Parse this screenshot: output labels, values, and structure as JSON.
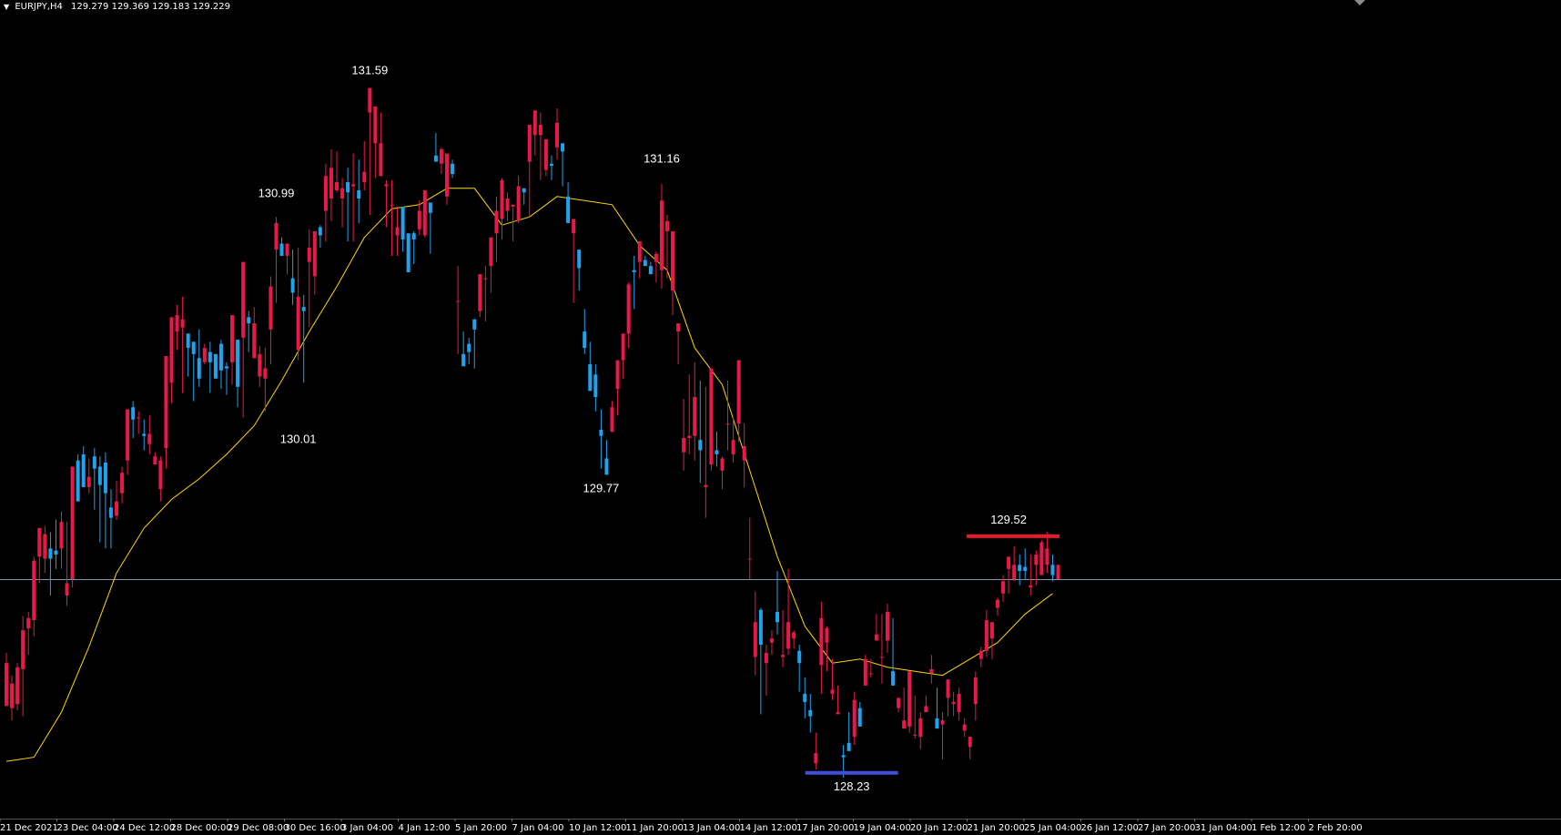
{
  "window": {
    "symbol_timeframe": "EURJPY,H4",
    "ohlc_readout": "129.279 129.369 129.183 129.229"
  },
  "colors": {
    "background": "#000000",
    "bull": "#e8194a",
    "bear": "#1fa3ee",
    "ma": "#ffd700",
    "bid_line": "#7f95b0",
    "resistance": "#e8192b",
    "support": "#3f4fd6",
    "text": "#ffffff"
  },
  "chart_data": {
    "type": "candlestick",
    "symbol": "EURJPY",
    "timeframe": "H4",
    "ylim": [
      128.06,
      132.06
    ],
    "time_labels": [
      "21 Dec 2021",
      "23 Dec 04:00",
      "24 Dec 12:00",
      "28 Dec 00:00",
      "29 Dec 08:00",
      "30 Dec 16:00",
      "3 Jan 04:00",
      "4 Jan 12:00",
      "5 Jan 20:00",
      "7 Jan 04:00",
      "10 Jan 12:00",
      "11 Jan 20:00",
      "13 Jan 04:00",
      "14 Jan 12:00",
      "17 Jan 20:00",
      "19 Jan 04:00",
      "20 Jan 12:00",
      "21 Jan 20:00",
      "25 Jan 04:00",
      "26 Jan 12:00",
      "27 Jan 20:00",
      "31 Jan 04:00",
      "1 Feb 12:00",
      "2 Feb 20:00"
    ],
    "price_labels": [
      {
        "label": "131.59",
        "kind": "swing-high",
        "bar": 66
      },
      {
        "label": "130.99",
        "kind": "swing-high",
        "bar": 49
      },
      {
        "label": "130.01",
        "kind": "swing-low",
        "bar": 53
      },
      {
        "label": "131.16",
        "kind": "swing-high",
        "bar": 119
      },
      {
        "label": "129.77",
        "kind": "swing-low",
        "bar": 108
      },
      {
        "label": "129.52",
        "kind": "resistance",
        "bar": 182
      },
      {
        "label": "128.23",
        "kind": "support",
        "bar": 153
      }
    ],
    "bid_price": 129.229,
    "levels": {
      "resistance": 129.52,
      "support": 128.23
    },
    "ma_series": [
      [
        0,
        128.34
      ],
      [
        5,
        128.36
      ],
      [
        10,
        128.58
      ],
      [
        15,
        128.9
      ],
      [
        20,
        129.26
      ],
      [
        25,
        129.48
      ],
      [
        30,
        129.62
      ],
      [
        35,
        129.72
      ],
      [
        40,
        129.84
      ],
      [
        45,
        129.98
      ],
      [
        50,
        130.2
      ],
      [
        55,
        130.44
      ],
      [
        60,
        130.66
      ],
      [
        65,
        130.9
      ],
      [
        70,
        131.04
      ],
      [
        75,
        131.06
      ],
      [
        80,
        131.14
      ],
      [
        85,
        131.14
      ],
      [
        90,
        130.96
      ],
      [
        95,
        131.0
      ],
      [
        100,
        131.1
      ],
      [
        105,
        131.08
      ],
      [
        110,
        131.06
      ],
      [
        115,
        130.86
      ],
      [
        120,
        130.74
      ],
      [
        125,
        130.36
      ],
      [
        130,
        130.18
      ],
      [
        135,
        129.76
      ],
      [
        140,
        129.34
      ],
      [
        145,
        129.0
      ],
      [
        150,
        128.82
      ],
      [
        155,
        128.84
      ],
      [
        160,
        128.8
      ],
      [
        165,
        128.78
      ],
      [
        170,
        128.76
      ],
      [
        175,
        128.84
      ],
      [
        180,
        128.92
      ],
      [
        185,
        129.06
      ],
      [
        190,
        129.16
      ]
    ],
    "candles": [
      [
        128.87,
        128.61,
        128.61,
        128.82
      ],
      [
        128.76,
        128.6,
        128.54,
        128.72
      ],
      [
        128.82,
        128.62,
        128.59,
        128.8
      ],
      [
        129.05,
        128.79,
        128.56,
        128.98
      ],
      [
        129.07,
        128.99,
        128.86,
        129.04
      ],
      [
        129.34,
        129.03,
        128.95,
        129.32
      ],
      [
        129.47,
        129.34,
        129.21,
        129.48
      ],
      [
        129.49,
        129.33,
        129.26,
        129.45
      ],
      [
        129.46,
        129.38,
        129.15,
        129.33
      ],
      [
        129.52,
        129.37,
        129.28,
        129.35
      ],
      [
        129.56,
        129.38,
        129.28,
        129.51
      ],
      [
        129.51,
        129.15,
        129.1,
        129.21
      ],
      [
        129.74,
        129.23,
        129.19,
        129.78
      ],
      [
        129.84,
        129.81,
        129.62,
        129.61
      ],
      [
        129.88,
        129.84,
        129.71,
        129.68
      ],
      [
        129.82,
        129.68,
        129.65,
        129.73
      ],
      [
        129.87,
        129.83,
        129.57,
        129.77
      ],
      [
        129.83,
        129.78,
        129.41,
        129.69
      ],
      [
        129.85,
        129.8,
        129.38,
        129.65
      ],
      [
        129.67,
        129.58,
        129.38,
        129.53
      ],
      [
        129.71,
        129.54,
        129.52,
        129.61
      ],
      [
        129.78,
        129.65,
        129.6,
        129.75
      ],
      [
        129.99,
        129.81,
        129.74,
        130.06
      ],
      [
        130.1,
        130.07,
        129.92,
        130.01
      ],
      [
        130.05,
        130.02,
        129.94,
        130.02
      ],
      [
        130.01,
        129.94,
        129.86,
        129.93
      ],
      [
        130.03,
        129.89,
        129.84,
        129.94
      ],
      [
        129.85,
        129.79,
        129.79,
        129.83
      ],
      [
        129.83,
        129.67,
        129.61,
        129.81
      ],
      [
        130.18,
        129.87,
        129.77,
        130.32
      ],
      [
        130.49,
        130.19,
        130.09,
        130.51
      ],
      [
        130.57,
        130.44,
        130.35,
        130.52
      ],
      [
        130.61,
        130.46,
        130.14,
        130.5
      ],
      [
        130.43,
        130.43,
        130.22,
        130.36
      ],
      [
        130.17,
        130.39,
        130.1,
        130.33
      ],
      [
        130.45,
        130.31,
        130.17,
        130.21
      ],
      [
        130.38,
        130.29,
        130.28,
        130.36
      ],
      [
        130.39,
        130.34,
        130.14,
        130.29
      ],
      [
        130.33,
        130.33,
        130.22,
        130.21
      ],
      [
        130.4,
        130.38,
        130.16,
        130.25
      ],
      [
        130.29,
        130.27,
        130.13,
        130.26
      ],
      [
        130.52,
        130.29,
        130.18,
        130.52
      ],
      [
        130.39,
        130.4,
        130.07,
        130.17
      ],
      [
        130.73,
        130.41,
        130.02,
        130.78
      ],
      [
        130.54,
        130.51,
        130.34,
        130.48
      ],
      [
        130.56,
        130.31,
        130.32,
        130.48
      ],
      [
        130.37,
        130.22,
        130.17,
        130.33
      ],
      [
        130.36,
        130.21,
        130.05,
        130.26
      ],
      [
        130.71,
        130.45,
        130.28,
        130.66
      ],
      [
        131.0,
        130.84,
        130.58,
        130.97
      ],
      [
        130.9,
        130.87,
        130.81,
        130.81
      ],
      [
        130.86,
        130.81,
        130.72,
        130.87
      ],
      [
        130.84,
        130.7,
        130.57,
        130.63
      ],
      [
        130.85,
        130.35,
        130.3,
        130.61
      ],
      [
        130.62,
        130.56,
        130.19,
        130.54
      ],
      [
        130.94,
        130.78,
        130.46,
        130.85
      ],
      [
        130.84,
        130.71,
        130.62,
        130.93
      ],
      [
        130.96,
        130.95,
        130.85,
        130.91
      ],
      [
        131.26,
        131.03,
        130.88,
        131.2
      ],
      [
        131.33,
        131.09,
        130.98,
        131.24
      ],
      [
        131.32,
        131.13,
        131.12,
        131.17
      ],
      [
        131.19,
        131.09,
        130.95,
        131.14
      ],
      [
        131.24,
        131.17,
        130.88,
        131.12
      ],
      [
        131.31,
        131.15,
        130.88,
        131.16
      ],
      [
        131.28,
        131.13,
        130.97,
        131.09
      ],
      [
        131.37,
        131.17,
        131.13,
        131.22
      ],
      [
        131.57,
        131.51,
        131.01,
        131.63
      ],
      [
        131.43,
        131.36,
        131.19,
        131.54
      ],
      [
        131.51,
        131.2,
        131.22,
        131.36
      ],
      [
        131.18,
        131.15,
        130.95,
        131.16
      ],
      [
        131.18,
        131.06,
        130.81,
        131.06
      ],
      [
        131.05,
        130.91,
        130.81,
        130.95
      ],
      [
        130.94,
        131.05,
        130.83,
        130.89
      ],
      [
        130.92,
        130.92,
        130.79,
        130.73
      ],
      [
        130.93,
        130.92,
        130.77,
        130.89
      ],
      [
        131.08,
        130.94,
        130.91,
        131.03
      ],
      [
        131.1,
        130.91,
        130.9,
        131.13
      ],
      [
        131.05,
        131.07,
        130.82,
        131.02
      ],
      [
        131.41,
        131.3,
        131.3,
        131.27
      ],
      [
        131.34,
        131.26,
        131.21,
        131.33
      ],
      [
        131.28,
        131.1,
        131.06,
        131.31
      ],
      [
        131.28,
        131.26,
        131.19,
        131.21
      ],
      [
        130.76,
        130.59,
        130.33,
        130.59
      ],
      [
        130.44,
        130.33,
        130.28,
        130.27
      ],
      [
        130.41,
        130.38,
        130.28,
        130.34
      ],
      [
        130.43,
        130.5,
        130.26,
        130.45
      ],
      [
        130.62,
        130.54,
        130.51,
        130.72
      ],
      [
        130.76,
        130.7,
        130.49,
        130.7
      ],
      [
        130.89,
        130.76,
        130.63,
        130.9
      ],
      [
        131.1,
        130.92,
        130.78,
        131.03
      ],
      [
        131.19,
        130.99,
        130.89,
        131.18
      ],
      [
        131.12,
        131.03,
        130.98,
        131.09
      ],
      [
        131.03,
        131.05,
        130.88,
        131.06
      ],
      [
        131.2,
        130.98,
        130.97,
        131.15
      ],
      [
        131.13,
        131.14,
        131.06,
        131.12
      ],
      [
        131.35,
        131.27,
        131.0,
        131.45
      ],
      [
        131.5,
        131.4,
        131.3,
        131.52
      ],
      [
        131.51,
        131.4,
        131.18,
        131.45
      ],
      [
        131.37,
        131.23,
        131.2,
        131.38
      ],
      [
        131.3,
        131.26,
        131.18,
        131.25
      ],
      [
        131.53,
        131.34,
        131.28,
        131.46
      ],
      [
        131.28,
        131.36,
        131.15,
        131.32
      ],
      [
        131.17,
        131.1,
        131.11,
        130.97
      ],
      [
        130.84,
        130.92,
        130.58,
        130.99
      ],
      [
        130.81,
        130.84,
        130.64,
        130.75
      ],
      [
        130.55,
        130.44,
        130.33,
        130.36
      ],
      [
        130.39,
        130.28,
        130.16,
        130.15
      ],
      [
        130.28,
        130.23,
        130.05,
        130.12
      ],
      [
        130.06,
        129.96,
        129.77,
        129.93
      ],
      [
        129.91,
        129.82,
        129.79,
        129.74
      ],
      [
        130.1,
        129.95,
        129.95,
        130.07
      ],
      [
        130.3,
        130.16,
        130.03,
        130.3
      ],
      [
        130.33,
        130.3,
        130.21,
        130.43
      ],
      [
        130.68,
        130.43,
        130.36,
        130.67
      ],
      [
        130.81,
        130.74,
        130.55,
        130.73
      ],
      [
        130.85,
        130.78,
        130.7,
        130.88
      ],
      [
        130.81,
        130.79,
        130.77,
        130.76
      ],
      [
        130.78,
        130.76,
        130.74,
        130.72
      ],
      [
        130.83,
        130.78,
        130.68,
        130.82
      ],
      [
        131.16,
        130.74,
        130.65,
        131.08
      ],
      [
        131.01,
        130.93,
        130.7,
        130.98
      ],
      [
        130.92,
        130.64,
        130.52,
        130.93
      ],
      [
        130.44,
        130.44,
        130.28,
        130.48
      ],
      [
        130.11,
        129.85,
        129.76,
        129.92
      ],
      [
        130.23,
        129.92,
        129.84,
        129.93
      ],
      [
        130.29,
        129.93,
        129.81,
        130.12
      ],
      [
        130.2,
        129.91,
        129.7,
        129.86
      ],
      [
        130.17,
        129.68,
        129.53,
        129.69
      ],
      [
        130.19,
        129.79,
        129.76,
        130.26
      ],
      [
        129.95,
        129.86,
        129.78,
        129.84
      ],
      [
        129.83,
        129.76,
        129.67,
        129.82
      ],
      [
        130.2,
        129.99,
        129.86,
        129.99
      ],
      [
        130.02,
        129.84,
        129.8,
        129.91
      ],
      [
        130.3,
        129.99,
        129.9,
        130.3
      ],
      [
        129.99,
        129.81,
        129.68,
        129.88
      ],
      [
        129.53,
        129.33,
        129.23,
        129.33
      ],
      [
        129.17,
        128.85,
        128.76,
        129.02
      ],
      [
        129.09,
        129.08,
        128.57,
        128.91
      ],
      [
        128.91,
        128.82,
        128.66,
        128.87
      ],
      [
        128.98,
        128.92,
        128.86,
        128.94
      ],
      [
        129.27,
        129.07,
        128.96,
        129.02
      ],
      [
        129.08,
        128.85,
        128.8,
        128.86
      ],
      [
        129.28,
        128.89,
        128.86,
        129.02
      ],
      [
        128.98,
        128.94,
        128.89,
        128.97
      ],
      [
        128.91,
        128.88,
        128.68,
        128.82
      ],
      [
        128.75,
        128.67,
        128.55,
        128.63
      ],
      [
        128.67,
        128.59,
        128.48,
        128.56
      ],
      [
        128.48,
        128.33,
        128.3,
        128.38
      ],
      [
        129.12,
        128.81,
        128.67,
        129.04
      ],
      [
        129.0,
        128.92,
        128.78,
        128.99
      ],
      [
        128.84,
        128.67,
        128.64,
        128.69
      ],
      [
        128.71,
        128.57,
        128.58,
        128.58
      ],
      [
        128.42,
        128.37,
        128.26,
        128.36
      ],
      [
        128.58,
        128.43,
        128.44,
        128.39
      ],
      [
        128.68,
        128.46,
        128.42,
        128.64
      ],
      [
        128.63,
        128.6,
        128.54,
        128.51
      ],
      [
        128.86,
        128.71,
        128.72,
        128.84
      ],
      [
        128.84,
        128.77,
        128.75,
        128.77
      ],
      [
        129.06,
        128.93,
        128.93,
        128.96
      ],
      [
        129.06,
        128.85,
        128.72,
        128.85
      ],
      [
        129.11,
        128.93,
        128.87,
        129.07
      ],
      [
        129.04,
        128.78,
        128.76,
        128.71
      ],
      [
        128.64,
        128.6,
        128.58,
        128.65
      ],
      [
        128.7,
        128.5,
        128.54,
        128.54
      ],
      [
        128.78,
        128.51,
        128.48,
        128.78
      ],
      [
        128.66,
        128.47,
        128.45,
        128.47
      ],
      [
        128.58,
        128.46,
        128.4,
        128.55
      ],
      [
        128.66,
        128.58,
        128.62,
        128.61
      ],
      [
        128.86,
        128.77,
        128.72,
        128.79
      ],
      [
        128.7,
        128.55,
        128.56,
        128.5
      ],
      [
        128.58,
        128.52,
        128.35,
        128.54
      ],
      [
        128.72,
        128.65,
        128.56,
        128.74
      ],
      [
        128.68,
        128.62,
        128.56,
        128.63
      ],
      [
        128.7,
        128.58,
        128.54,
        128.67
      ],
      [
        128.55,
        128.49,
        128.46,
        128.52
      ],
      [
        128.46,
        128.41,
        128.35,
        128.46
      ],
      [
        128.78,
        128.62,
        128.54,
        128.75
      ],
      [
        128.9,
        128.84,
        128.8,
        128.88
      ],
      [
        129.08,
        128.88,
        128.85,
        129.03
      ],
      [
        129.02,
        128.94,
        128.84,
        129.02
      ],
      [
        129.14,
        129.09,
        129.05,
        129.13
      ],
      [
        129.25,
        129.16,
        129.12,
        129.22
      ],
      [
        129.34,
        129.28,
        129.16,
        129.34
      ],
      [
        129.39,
        129.23,
        129.22,
        129.3
      ],
      [
        129.35,
        129.3,
        129.2,
        129.27
      ],
      [
        129.38,
        129.29,
        129.23,
        129.27
      ],
      [
        129.35,
        129.19,
        129.15,
        129.2
      ],
      [
        129.37,
        129.3,
        129.2,
        129.35
      ],
      [
        129.42,
        129.25,
        129.25,
        129.41
      ],
      [
        129.46,
        129.3,
        129.26,
        129.38
      ],
      [
        129.35,
        129.3,
        129.22,
        129.25
      ],
      [
        129.29,
        129.23,
        129.23,
        129.3
      ]
    ]
  }
}
